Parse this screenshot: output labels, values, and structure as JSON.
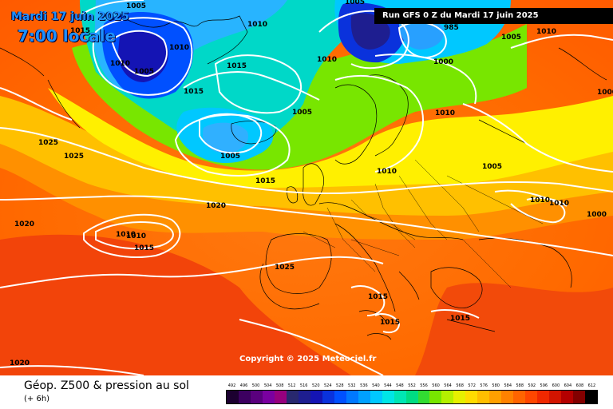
{
  "header": {
    "date": "Mardi 17 juin 2025",
    "time": "7:00 locale",
    "run": "Run GFS 0 Z du Mardi 17 juin 2025"
  },
  "copyright": "Copyright © 2025 Meteociel.fr",
  "footer": {
    "title": "Géop. Z500 & pression au sol",
    "subtitle": "(+ 6h)"
  },
  "legend": {
    "values": [
      "492",
      "496",
      "500",
      "504",
      "508",
      "512",
      "516",
      "520",
      "524",
      "528",
      "532",
      "536",
      "540",
      "544",
      "548",
      "552",
      "556",
      "560",
      "564",
      "568",
      "572",
      "576",
      "580",
      "584",
      "588",
      "592",
      "596",
      "600",
      "604",
      "608",
      "612"
    ],
    "colors": [
      "#1c0030",
      "#3c0060",
      "#5a007e",
      "#7a00a0",
      "#96007e",
      "#28286e",
      "#1e1e90",
      "#1414b4",
      "#0a32dc",
      "#0050ff",
      "#0078ff",
      "#00a0ff",
      "#00c8ff",
      "#00e6e6",
      "#00e6b4",
      "#00dc82",
      "#32dc32",
      "#78e600",
      "#b4f000",
      "#e6f000",
      "#ffdc00",
      "#ffbe00",
      "#ffa000",
      "#ff8200",
      "#ff6400",
      "#ff4600",
      "#f02800",
      "#d21400",
      "#b40000",
      "#820000",
      "#000000"
    ]
  },
  "isobars": [
    {
      "text": "1005",
      "col": "dark"
    },
    {
      "text": "1015",
      "col": "dark"
    },
    {
      "text": "1010",
      "col": "dark"
    },
    {
      "text": "1005",
      "col": "dark"
    },
    {
      "text": "1010",
      "col": "dark"
    },
    {
      "text": "1010",
      "col": "dark"
    },
    {
      "text": "1015",
      "col": "dark"
    },
    {
      "text": "1015",
      "col": "dark"
    },
    {
      "text": "1005",
      "col": "dark"
    },
    {
      "text": "1010",
      "col": "dark"
    },
    {
      "text": "1005",
      "col": "dark"
    },
    {
      "text": "1000",
      "col": "dark"
    },
    {
      "text": "1010",
      "col": "dark"
    },
    {
      "text": "985",
      "col": "dark"
    },
    {
      "text": "1005",
      "col": "dark"
    },
    {
      "text": "1010",
      "col": "dark"
    },
    {
      "text": "1000",
      "col": "dark"
    },
    {
      "text": "1025",
      "col": "dark"
    },
    {
      "text": "1025",
      "col": "dark"
    },
    {
      "text": "1005",
      "col": "dark"
    },
    {
      "text": "1015",
      "col": "dark"
    },
    {
      "text": "1020",
      "col": "dark"
    },
    {
      "text": "1010",
      "col": "dark"
    },
    {
      "text": "1005",
      "col": "dark"
    },
    {
      "text": "1010",
      "col": "dark"
    },
    {
      "text": "1010",
      "col": "dark"
    },
    {
      "text": "1000",
      "col": "dark"
    },
    {
      "text": "1020",
      "col": "dark"
    },
    {
      "text": "1010",
      "col": "dark"
    },
    {
      "text": "1010",
      "col": "dark"
    },
    {
      "text": "1015",
      "col": "dark"
    },
    {
      "text": "1025",
      "col": "dark"
    },
    {
      "text": "1015",
      "col": "dark"
    },
    {
      "text": "1015",
      "col": "dark"
    },
    {
      "text": "1015",
      "col": "dark"
    },
    {
      "text": "1020",
      "col": "dark"
    }
  ]
}
